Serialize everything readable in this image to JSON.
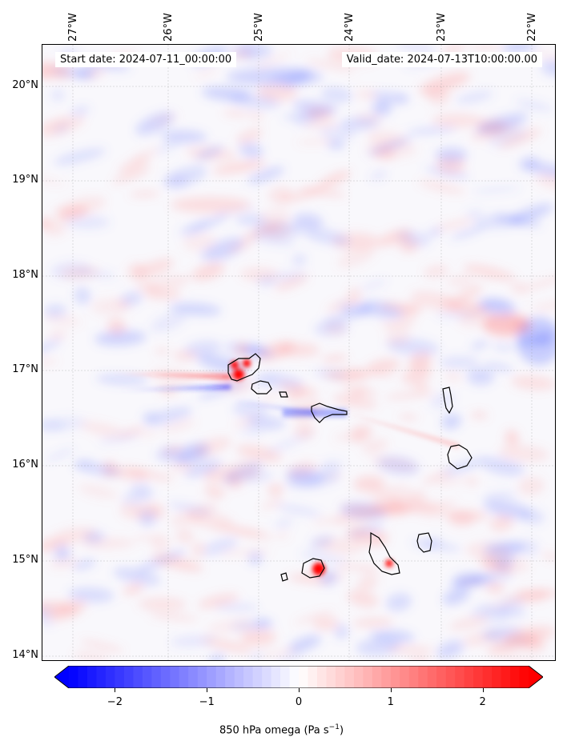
{
  "map": {
    "start_date": "Start date: 2024-07-11_00:00:00",
    "valid_date": "Valid_date: 2024-07-13T10:00:00.00",
    "lon_labels": [
      "27°W",
      "26°W",
      "25°W",
      "24°W",
      "23°W",
      "22°W"
    ],
    "lat_labels": [
      "20°N",
      "19°N",
      "18°N",
      "17°N",
      "16°N",
      "15°N",
      "14°N"
    ],
    "lon_range": [
      -27.33,
      -21.75
    ],
    "lat_range": [
      13.95,
      20.42
    ]
  },
  "colorbar": {
    "label": "850 hPa omega (Pa s",
    "label_sup": "−1",
    "label_end": ")",
    "ticks": [
      "−2",
      "−1",
      "0",
      "1",
      "2"
    ],
    "tick_values": [
      -2,
      -1,
      0,
      1,
      2
    ],
    "range": [
      -2.5,
      2.5
    ],
    "colors": {
      "negative": "#0000ff",
      "zero": "#ffffff",
      "positive": "#ff0000"
    }
  }
}
